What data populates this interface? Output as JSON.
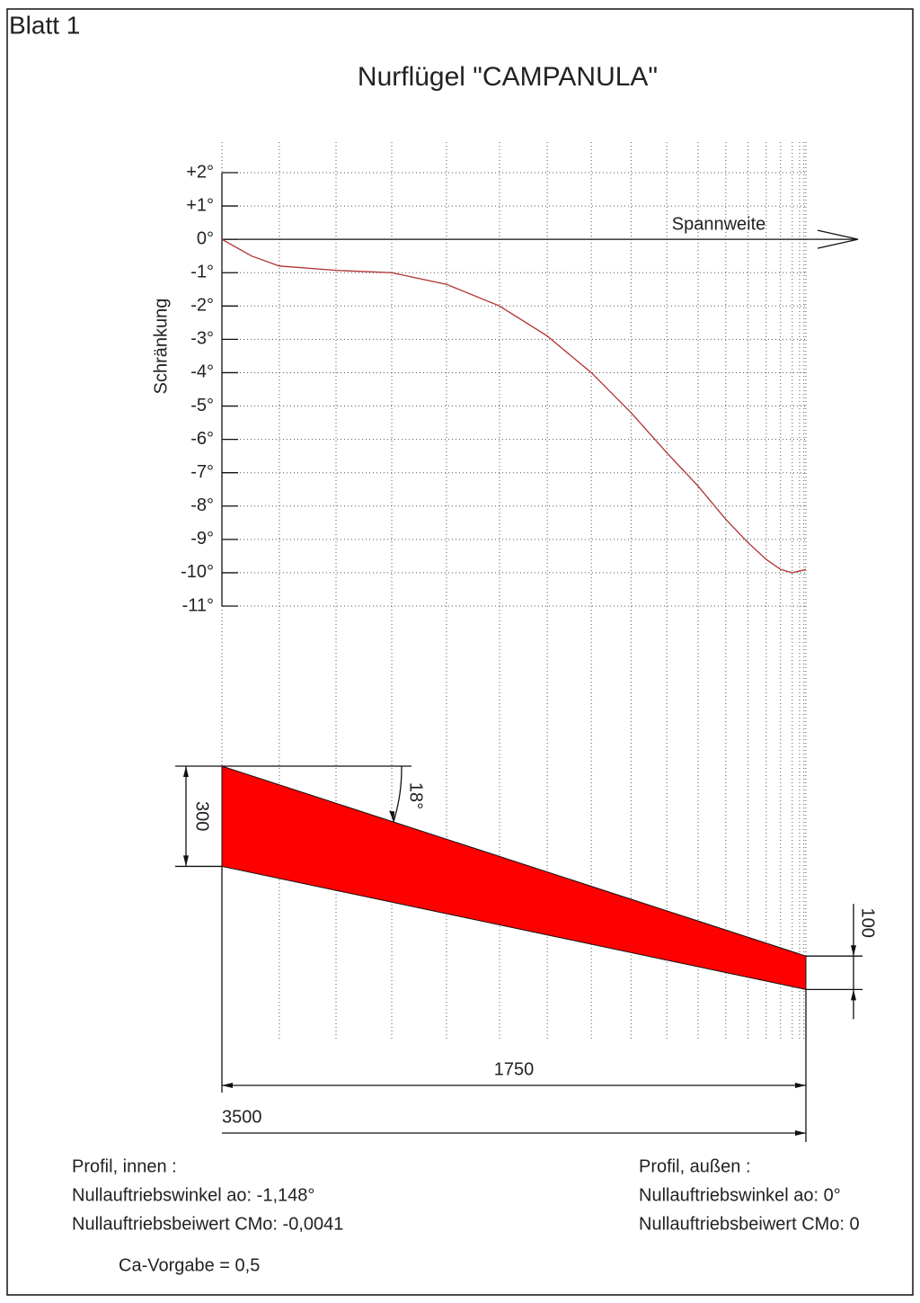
{
  "sheet": "Blatt 1",
  "chart_data": {
    "type": "line",
    "title": "Nurflügel \"CAMPANULA\"",
    "x_label": "Spannweite",
    "y_label": "Schränkung",
    "x": [
      0,
      89,
      172,
      342,
      509,
      673,
      832,
      975,
      1107,
      1226,
      1333,
      1427,
      1510,
      1577,
      1631,
      1674,
      1709,
      1731,
      1750
    ],
    "series": [
      {
        "color": "#b03030",
        "values": [
          0,
          -0.5,
          -0.8,
          -0.93,
          -1.0,
          -1.35,
          -2.0,
          -2.9,
          -4.0,
          -5.2,
          -6.4,
          -7.4,
          -8.4,
          -9.1,
          -9.6,
          -9.9,
          -10.0,
          -9.95,
          -9.9
        ]
      }
    ],
    "xlim": [
      0,
      1750
    ],
    "xticks": [
      0,
      172,
      342,
      509,
      673,
      832,
      975,
      1107,
      1226,
      1333,
      1427,
      1510,
      1577,
      1631,
      1674,
      1709,
      1731,
      1744,
      1750
    ],
    "ylim": [
      -11,
      2
    ],
    "yticks": [
      {
        "value": 2,
        "label": "+2°"
      },
      {
        "value": 1,
        "label": "+1°"
      },
      {
        "value": 0,
        "label": "0°"
      },
      {
        "value": -1,
        "label": "-1°"
      },
      {
        "value": -2,
        "label": "-2°"
      },
      {
        "value": -3,
        "label": "-3°"
      },
      {
        "value": -4,
        "label": "-4°"
      },
      {
        "value": -5,
        "label": "-5°"
      },
      {
        "value": -6,
        "label": "-6°"
      },
      {
        "value": -7,
        "label": "-7°"
      },
      {
        "value": -8,
        "label": "-8°"
      },
      {
        "value": -9,
        "label": "-9°"
      },
      {
        "value": -10,
        "label": "-10°"
      },
      {
        "value": -11,
        "label": "-11°"
      }
    ],
    "grid": true
  },
  "planform": {
    "root_chord": 300,
    "tip_chord": 100,
    "semi_span": 1750,
    "span": 3500,
    "sweep": 18,
    "sweep_label": "18°",
    "color": "#ff0000"
  },
  "profile_inner": {
    "heading": "Profil, innen :",
    "angle": "Nullauftriebswinkel ao: -1,148°",
    "moment": "Nullauftriebsbeiwert CMo: -0,0041"
  },
  "profile_outer": {
    "heading": "Profil, außen :",
    "angle": "Nullauftriebswinkel ao: 0°",
    "moment": "Nullauftriebsbeiwert CMo: 0"
  },
  "ca": "Ca-Vorgabe = 0,5"
}
